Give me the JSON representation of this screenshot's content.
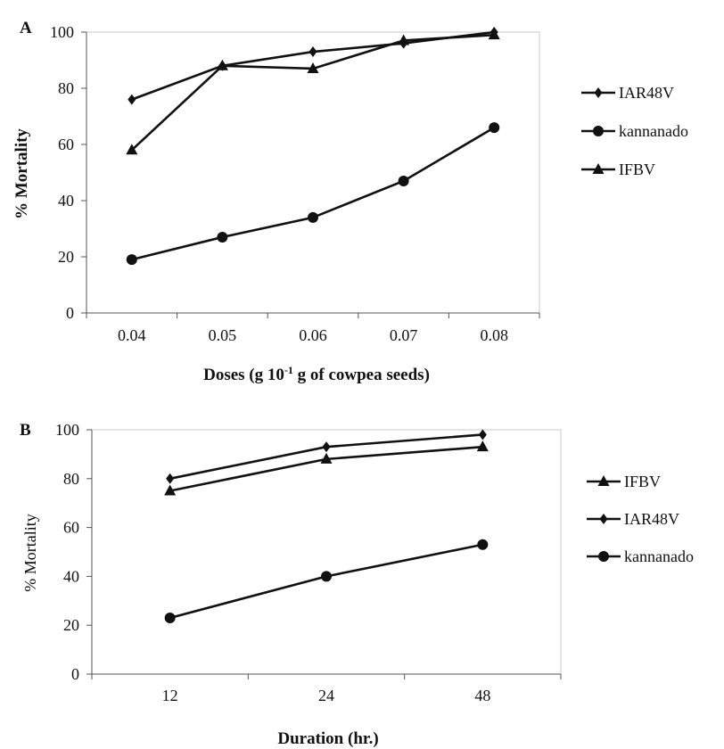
{
  "chart_data": [
    {
      "panel_label": "A",
      "type": "line",
      "ylabel": "% Mortality",
      "xlabel_main": "Doses (g 10",
      "xlabel_sup": "-1",
      "xlabel_rest": " g of cowpea seeds)",
      "x_ticks": [
        "0.04",
        "0.05",
        "0.06",
        "0.07",
        "0.08"
      ],
      "x": [
        0.04,
        0.05,
        0.06,
        0.07,
        0.08
      ],
      "ylim": [
        0,
        100
      ],
      "y_ticks": [
        "0",
        "20",
        "40",
        "60",
        "80",
        "100"
      ],
      "series": [
        {
          "name": "IAR48V",
          "marker": "diamond",
          "values": [
            76,
            88,
            93,
            96,
            100
          ]
        },
        {
          "name": "kannanado",
          "marker": "circle",
          "values": [
            19,
            27,
            34,
            47,
            66
          ]
        },
        {
          "name": "IFBV",
          "marker": "triangle",
          "values": [
            58,
            88,
            87,
            97,
            99
          ]
        }
      ],
      "legend_order": [
        "IAR48V",
        "kannanado",
        "IFBV"
      ],
      "legend_position": "right",
      "grid": false
    },
    {
      "panel_label": "B",
      "type": "line",
      "ylabel": "% Mortality",
      "xlabel": "Duration (hr.)",
      "x_ticks": [
        "12",
        "24",
        "48"
      ],
      "x": [
        12,
        24,
        48
      ],
      "ylim": [
        0,
        100
      ],
      "y_ticks": [
        "0",
        "20",
        "40",
        "60",
        "80",
        "100"
      ],
      "series": [
        {
          "name": "IFBV",
          "marker": "triangle",
          "values": [
            75,
            88,
            93
          ]
        },
        {
          "name": "IAR48V",
          "marker": "diamond",
          "values": [
            80,
            93,
            98
          ]
        },
        {
          "name": "kannanado",
          "marker": "circle",
          "values": [
            23,
            40,
            53
          ]
        }
      ],
      "legend_order": [
        "IFBV",
        "IAR48V",
        "kannanado"
      ],
      "legend_position": "right",
      "grid": false
    }
  ]
}
